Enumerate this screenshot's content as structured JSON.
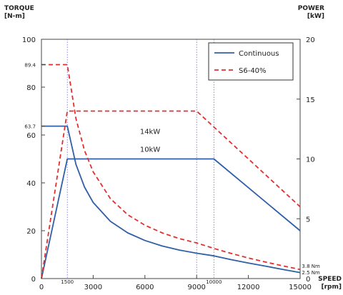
{
  "chart_data": {
    "type": "line",
    "left_axis": {
      "title_line1": "TORQUE",
      "title_line2": "[N-m]",
      "ylim": [
        0,
        100
      ],
      "ticks": [
        0,
        20,
        40,
        60,
        80,
        100
      ],
      "special_ticks": [
        {
          "value": 63.7,
          "label": "63.7"
        },
        {
          "value": 89.4,
          "label": "89.4"
        }
      ]
    },
    "right_axis": {
      "title_line1": "POWER",
      "title_line2": "[kW]",
      "ylim": [
        0,
        20
      ],
      "ticks": [
        0,
        5,
        10,
        15,
        20
      ]
    },
    "x_axis": {
      "title_line1": "SPEED",
      "title_line2": "[rpm]",
      "xlim": [
        0,
        15000
      ],
      "ticks": [
        0,
        3000,
        6000,
        9000,
        12000,
        15000
      ],
      "special_ticks": [
        {
          "value": 1500,
          "label": "1500"
        },
        {
          "value": 10000,
          "label": "10000"
        }
      ]
    },
    "legend": {
      "position": "top-right",
      "entries": [
        {
          "label": "Continuous",
          "color": "#2f5fa8",
          "style": "solid"
        },
        {
          "label": "S6-40%",
          "color": "#e03030",
          "style": "dashed"
        }
      ]
    },
    "series": [
      {
        "name": "Continuous",
        "kind": "torque",
        "axis": "left",
        "color": "#2f5fa8",
        "style": "solid",
        "x": [
          0,
          1500,
          2000,
          2500,
          3000,
          4000,
          5000,
          6000,
          7000,
          8000,
          9000,
          10000,
          11000,
          12000,
          13000,
          14000,
          15000
        ],
        "y": [
          63.7,
          63.7,
          47.7,
          38.2,
          31.8,
          23.9,
          19.1,
          15.9,
          13.6,
          11.9,
          10.6,
          9.5,
          7.9,
          6.5,
          5.2,
          3.8,
          2.5
        ]
      },
      {
        "name": "Continuous",
        "kind": "power",
        "axis": "right",
        "color": "#2f5fa8",
        "style": "solid",
        "x": [
          0,
          1500,
          10000,
          15000
        ],
        "y": [
          0,
          10,
          10,
          4
        ]
      },
      {
        "name": "S6-40%",
        "kind": "torque",
        "axis": "left",
        "color": "#e03030",
        "style": "dashed",
        "x": [
          0,
          1500,
          2000,
          2500,
          3000,
          4000,
          5000,
          6000,
          7000,
          8000,
          9000,
          10000,
          11000,
          12000,
          13000,
          14000,
          15000
        ],
        "y": [
          89.4,
          89.4,
          66.8,
          53.5,
          44.6,
          33.4,
          26.7,
          22.3,
          19.1,
          16.7,
          14.9,
          12.6,
          10.5,
          8.6,
          6.9,
          5.3,
          3.8
        ]
      },
      {
        "name": "S6-40%",
        "kind": "power",
        "axis": "right",
        "color": "#e03030",
        "style": "dashed",
        "x": [
          0,
          1500,
          9000,
          15000
        ],
        "y": [
          0,
          14,
          14,
          6
        ]
      }
    ],
    "guides": [
      1500,
      9000,
      10000
    ],
    "annotations": [
      {
        "text": "14kW",
        "x": 6300,
        "y_left": 60.5
      },
      {
        "text": "10kW",
        "x": 6300,
        "y_left": 53
      },
      {
        "text": "3.8 Nm",
        "x": 15100,
        "y_left": 4.5
      },
      {
        "text": "2.5 Nm",
        "x": 15100,
        "y_left": 1.8
      }
    ]
  }
}
